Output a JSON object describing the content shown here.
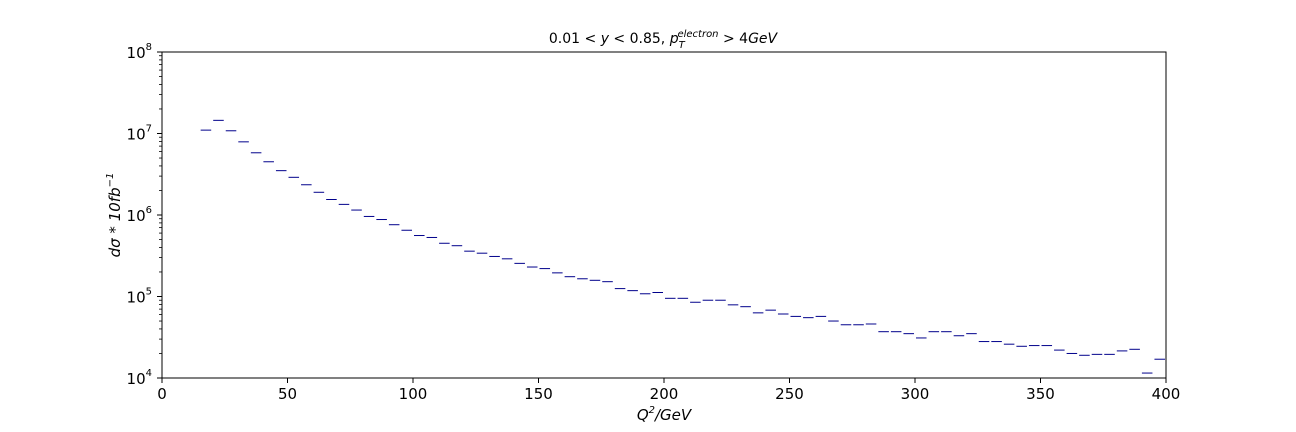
{
  "chart_data": {
    "type": "step",
    "title": "0.01 < y < 0.85, p_T^electron > 4GeV",
    "xlabel": "Q^2/GeV",
    "ylabel": "dσ * 10fb^-1",
    "xlim": [
      0,
      400
    ],
    "ylim": [
      10000,
      100000000
    ],
    "yscale": "log",
    "grid": false,
    "line_color": "#00008b",
    "x_ticks": [
      {
        "value": 0,
        "label": "0"
      },
      {
        "value": 50,
        "label": "50"
      },
      {
        "value": 100,
        "label": "100"
      },
      {
        "value": 150,
        "label": "150"
      },
      {
        "value": 200,
        "label": "200"
      },
      {
        "value": 250,
        "label": "250"
      },
      {
        "value": 300,
        "label": "300"
      },
      {
        "value": 350,
        "label": "350"
      },
      {
        "value": 400,
        "label": "400"
      }
    ],
    "y_ticks": [
      {
        "value": 10000,
        "base": "10",
        "exp": "4"
      },
      {
        "value": 100000,
        "base": "10",
        "exp": "5"
      },
      {
        "value": 1000000,
        "base": "10",
        "exp": "6"
      },
      {
        "value": 10000000,
        "base": "10",
        "exp": "7"
      },
      {
        "value": 100000000,
        "base": "10",
        "exp": "8"
      }
    ],
    "bin_edges": [
      15,
      20,
      25,
      30,
      35,
      40,
      45,
      50,
      55,
      60,
      65,
      70,
      75,
      80,
      85,
      90,
      95,
      100,
      105,
      110,
      115,
      120,
      125,
      130,
      135,
      140,
      145,
      150,
      155,
      160,
      165,
      170,
      175,
      180,
      185,
      190,
      195,
      200,
      205,
      210,
      215,
      220,
      225,
      230,
      235,
      240,
      245,
      250,
      255,
      260,
      265,
      270,
      275,
      280,
      285,
      290,
      295,
      300,
      305,
      310,
      315,
      320,
      325,
      330,
      335,
      340,
      345,
      350,
      355,
      360,
      365,
      370,
      375,
      380,
      385,
      390,
      395,
      400
    ],
    "values": [
      11000000,
      14500000,
      10800000,
      7900000,
      5800000,
      4500000,
      3500000,
      2900000,
      2350000,
      1900000,
      1550000,
      1350000,
      1150000,
      960000,
      880000,
      760000,
      650000,
      560000,
      530000,
      450000,
      420000,
      360000,
      340000,
      310000,
      290000,
      255000,
      230000,
      220000,
      195000,
      175000,
      165000,
      158000,
      152000,
      125000,
      118000,
      108000,
      112000,
      95000,
      95000,
      85000,
      90000,
      90000,
      79000,
      75000,
      63000,
      68000,
      61000,
      57000,
      55000,
      57000,
      50000,
      45000,
      45000,
      46000,
      37000,
      37000,
      35000,
      31000,
      37000,
      37000,
      33000,
      35000,
      28000,
      28000,
      26000,
      24500,
      25000,
      25000,
      22000,
      20000,
      19000,
      19500,
      19500,
      21500,
      22500,
      11500,
      17000
    ]
  }
}
